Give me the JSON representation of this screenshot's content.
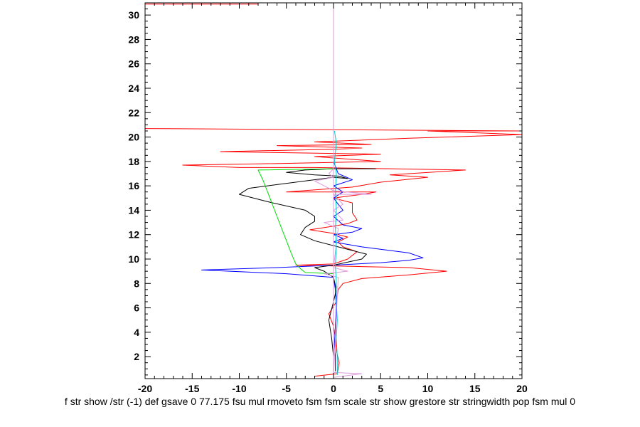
{
  "chart_data": {
    "type": "line",
    "title": "",
    "xlabel": "f str show /str (-1) def gsave 0 77.175 fsu mul rmoveto fsm fsm scale str show grestore str stringwidth pop fsm mul 0",
    "ylabel": "",
    "xlim": [
      -20,
      20
    ],
    "ylim": [
      0.2,
      31
    ],
    "x_ticks": [
      -20,
      -15,
      -10,
      -5,
      0,
      5,
      10,
      15,
      20
    ],
    "y_ticks": [
      2,
      4,
      6,
      8,
      10,
      12,
      14,
      16,
      18,
      20,
      22,
      24,
      26,
      28,
      30
    ],
    "grid": false,
    "series": [
      {
        "color": "#ff0000",
        "points": [
          [
            -2.0,
            0.4
          ],
          [
            0.4,
            0.6
          ],
          [
            0.6,
            1.5
          ],
          [
            0.3,
            2.5
          ],
          [
            0.2,
            3.5
          ],
          [
            0.0,
            4.5
          ],
          [
            -0.5,
            5.5
          ],
          [
            0.3,
            6.5
          ],
          [
            0.5,
            7.5
          ],
          [
            1.0,
            8.0
          ],
          [
            3.0,
            8.4
          ],
          [
            8.0,
            8.7
          ],
          [
            12.0,
            9.0
          ],
          [
            8.0,
            9.3
          ],
          [
            2.0,
            9.4
          ],
          [
            -4.0,
            9.5
          ],
          [
            0.0,
            9.6
          ],
          [
            1.5,
            10.0
          ],
          [
            2.5,
            10.6
          ],
          [
            1.0,
            11.0
          ],
          [
            0.5,
            11.4
          ],
          [
            1.5,
            11.8
          ],
          [
            0.0,
            12.1
          ],
          [
            -2.5,
            12.4
          ],
          [
            0.0,
            12.7
          ],
          [
            1.5,
            12.9
          ],
          [
            2.5,
            13.2
          ],
          [
            2.0,
            13.8
          ],
          [
            2.0,
            14.6
          ],
          [
            0.0,
            15.0
          ],
          [
            3.0,
            15.3
          ],
          [
            4.5,
            15.5
          ],
          [
            -5.0,
            15.5
          ],
          [
            2.0,
            15.9
          ],
          [
            5.0,
            16.3
          ],
          [
            10.0,
            16.7
          ],
          [
            6.0,
            16.9
          ],
          [
            8.0,
            17.0
          ],
          [
            14.0,
            17.3
          ],
          [
            6.0,
            17.4
          ],
          [
            -2.0,
            17.5
          ],
          [
            -10.0,
            17.5
          ],
          [
            -16.0,
            17.7
          ],
          [
            -8.0,
            17.8
          ],
          [
            5.0,
            18.0
          ],
          [
            -2.0,
            18.4
          ],
          [
            5.0,
            18.6
          ],
          [
            -12.0,
            18.8
          ],
          [
            0.0,
            19.0
          ],
          [
            3.0,
            19.1
          ],
          [
            -6.0,
            19.3
          ],
          [
            4.0,
            19.4
          ],
          [
            -2.0,
            19.6
          ],
          [
            8.0,
            19.9
          ],
          [
            20.0,
            20.2
          ],
          [
            10.0,
            20.5
          ],
          [
            20.0,
            20.5
          ],
          [
            -20.0,
            20.7
          ]
        ]
      },
      {
        "color": "#ff0000",
        "points": [
          [
            -20.0,
            30.9
          ],
          [
            -8.0,
            30.9
          ]
        ]
      },
      {
        "color": "#0000ff",
        "points": [
          [
            0.2,
            0.8
          ],
          [
            0.2,
            2.0
          ],
          [
            0.1,
            3.0
          ],
          [
            0.2,
            4.5
          ],
          [
            0.3,
            6.0
          ],
          [
            0.2,
            7.5
          ],
          [
            0.0,
            8.5
          ],
          [
            -5.0,
            8.8
          ],
          [
            -14.0,
            9.1
          ],
          [
            -6.0,
            9.3
          ],
          [
            0.0,
            9.5
          ],
          [
            5.0,
            9.7
          ],
          [
            8.0,
            9.9
          ],
          [
            9.5,
            10.1
          ],
          [
            8.0,
            10.5
          ],
          [
            3.0,
            11.0
          ],
          [
            0.0,
            11.4
          ],
          [
            1.0,
            11.7
          ],
          [
            0.0,
            12.0
          ],
          [
            2.0,
            12.2
          ],
          [
            3.0,
            12.5
          ],
          [
            1.0,
            12.8
          ],
          [
            0.0,
            13.5
          ],
          [
            1.0,
            14.0
          ],
          [
            0.5,
            14.5
          ],
          [
            0.0,
            15.0
          ],
          [
            1.0,
            15.5
          ],
          [
            0.0,
            16.0
          ],
          [
            2.0,
            16.5
          ],
          [
            0.5,
            17.0
          ],
          [
            0.0,
            18.0
          ],
          [
            0.0,
            20.5
          ]
        ]
      },
      {
        "color": "#000000",
        "points": [
          [
            0.0,
            0.8
          ],
          [
            0.0,
            2.0
          ],
          [
            -0.2,
            3.5
          ],
          [
            -0.5,
            5.0
          ],
          [
            0.0,
            6.5
          ],
          [
            0.3,
            7.5
          ],
          [
            0.0,
            8.5
          ],
          [
            -1.0,
            9.0
          ],
          [
            -2.0,
            9.3
          ],
          [
            0.0,
            9.5
          ],
          [
            3.0,
            10.0
          ],
          [
            3.5,
            10.4
          ],
          [
            1.0,
            10.9
          ],
          [
            -2.0,
            11.5
          ],
          [
            -3.5,
            12.0
          ],
          [
            -3.0,
            12.6
          ],
          [
            -2.0,
            13.1
          ],
          [
            -2.0,
            13.5
          ],
          [
            -3.0,
            14.0
          ],
          [
            -7.0,
            14.7
          ],
          [
            -10.0,
            15.3
          ],
          [
            -9.0,
            15.8
          ],
          [
            -6.0,
            16.1
          ],
          [
            -3.0,
            16.4
          ],
          [
            0.0,
            16.7
          ],
          [
            1.5,
            16.6
          ],
          [
            0.5,
            16.8
          ],
          [
            -2.0,
            16.9
          ],
          [
            -5.0,
            17.1
          ],
          [
            -3.0,
            17.3
          ],
          [
            0.0,
            17.4
          ],
          [
            4.5,
            17.4
          ]
        ]
      },
      {
        "color": "#00dd00",
        "points": [
          [
            0.0,
            8.8
          ],
          [
            -3.0,
            8.9
          ],
          [
            -3.5,
            9.2
          ],
          [
            -4.0,
            9.6
          ],
          [
            -4.5,
            10.5
          ],
          [
            -5.0,
            11.5
          ],
          [
            -5.5,
            12.5
          ],
          [
            -6.0,
            13.5
          ],
          [
            -6.5,
            14.5
          ],
          [
            -7.0,
            15.5
          ],
          [
            -7.5,
            16.5
          ],
          [
            -8.0,
            17.3
          ],
          [
            0.0,
            17.4
          ]
        ]
      },
      {
        "color": "#dd99dd",
        "points": [
          [
            0.0,
            0.3
          ],
          [
            0.0,
            31.0
          ]
        ]
      },
      {
        "color": "#dd99dd",
        "points": [
          [
            0.0,
            0.7
          ],
          [
            3.0,
            0.6
          ],
          [
            0.0,
            0.3
          ],
          [
            0.5,
            8.5
          ],
          [
            -1.0,
            8.8
          ],
          [
            1.5,
            9.0
          ],
          [
            0.0,
            9.3
          ],
          [
            0.5,
            12.5
          ],
          [
            -1.0,
            13.0
          ],
          [
            1.0,
            13.2
          ],
          [
            0.5,
            13.6
          ],
          [
            0.0,
            14.0
          ],
          [
            1.0,
            14.5
          ],
          [
            0.0,
            15.3
          ],
          [
            4.0,
            15.3
          ],
          [
            0.0,
            15.6
          ],
          [
            -1.0,
            16.0
          ],
          [
            -2.0,
            16.4
          ],
          [
            0.0,
            16.7
          ],
          [
            -0.5,
            17.0
          ],
          [
            0.0,
            17.4
          ]
        ]
      },
      {
        "color": "#00cccc",
        "points": [
          [
            0.4,
            0.5
          ],
          [
            0.4,
            2.0
          ],
          [
            0.3,
            3.5
          ],
          [
            0.4,
            5.0
          ],
          [
            0.3,
            6.5
          ],
          [
            0.3,
            8.0
          ],
          [
            0.2,
            9.5
          ],
          [
            0.3,
            11.0
          ],
          [
            0.2,
            12.5
          ],
          [
            0.3,
            14.0
          ],
          [
            0.2,
            15.5
          ],
          [
            0.3,
            17.0
          ],
          [
            0.1,
            18.0
          ],
          [
            0.3,
            19.5
          ],
          [
            0.1,
            20.5
          ]
        ]
      }
    ]
  }
}
